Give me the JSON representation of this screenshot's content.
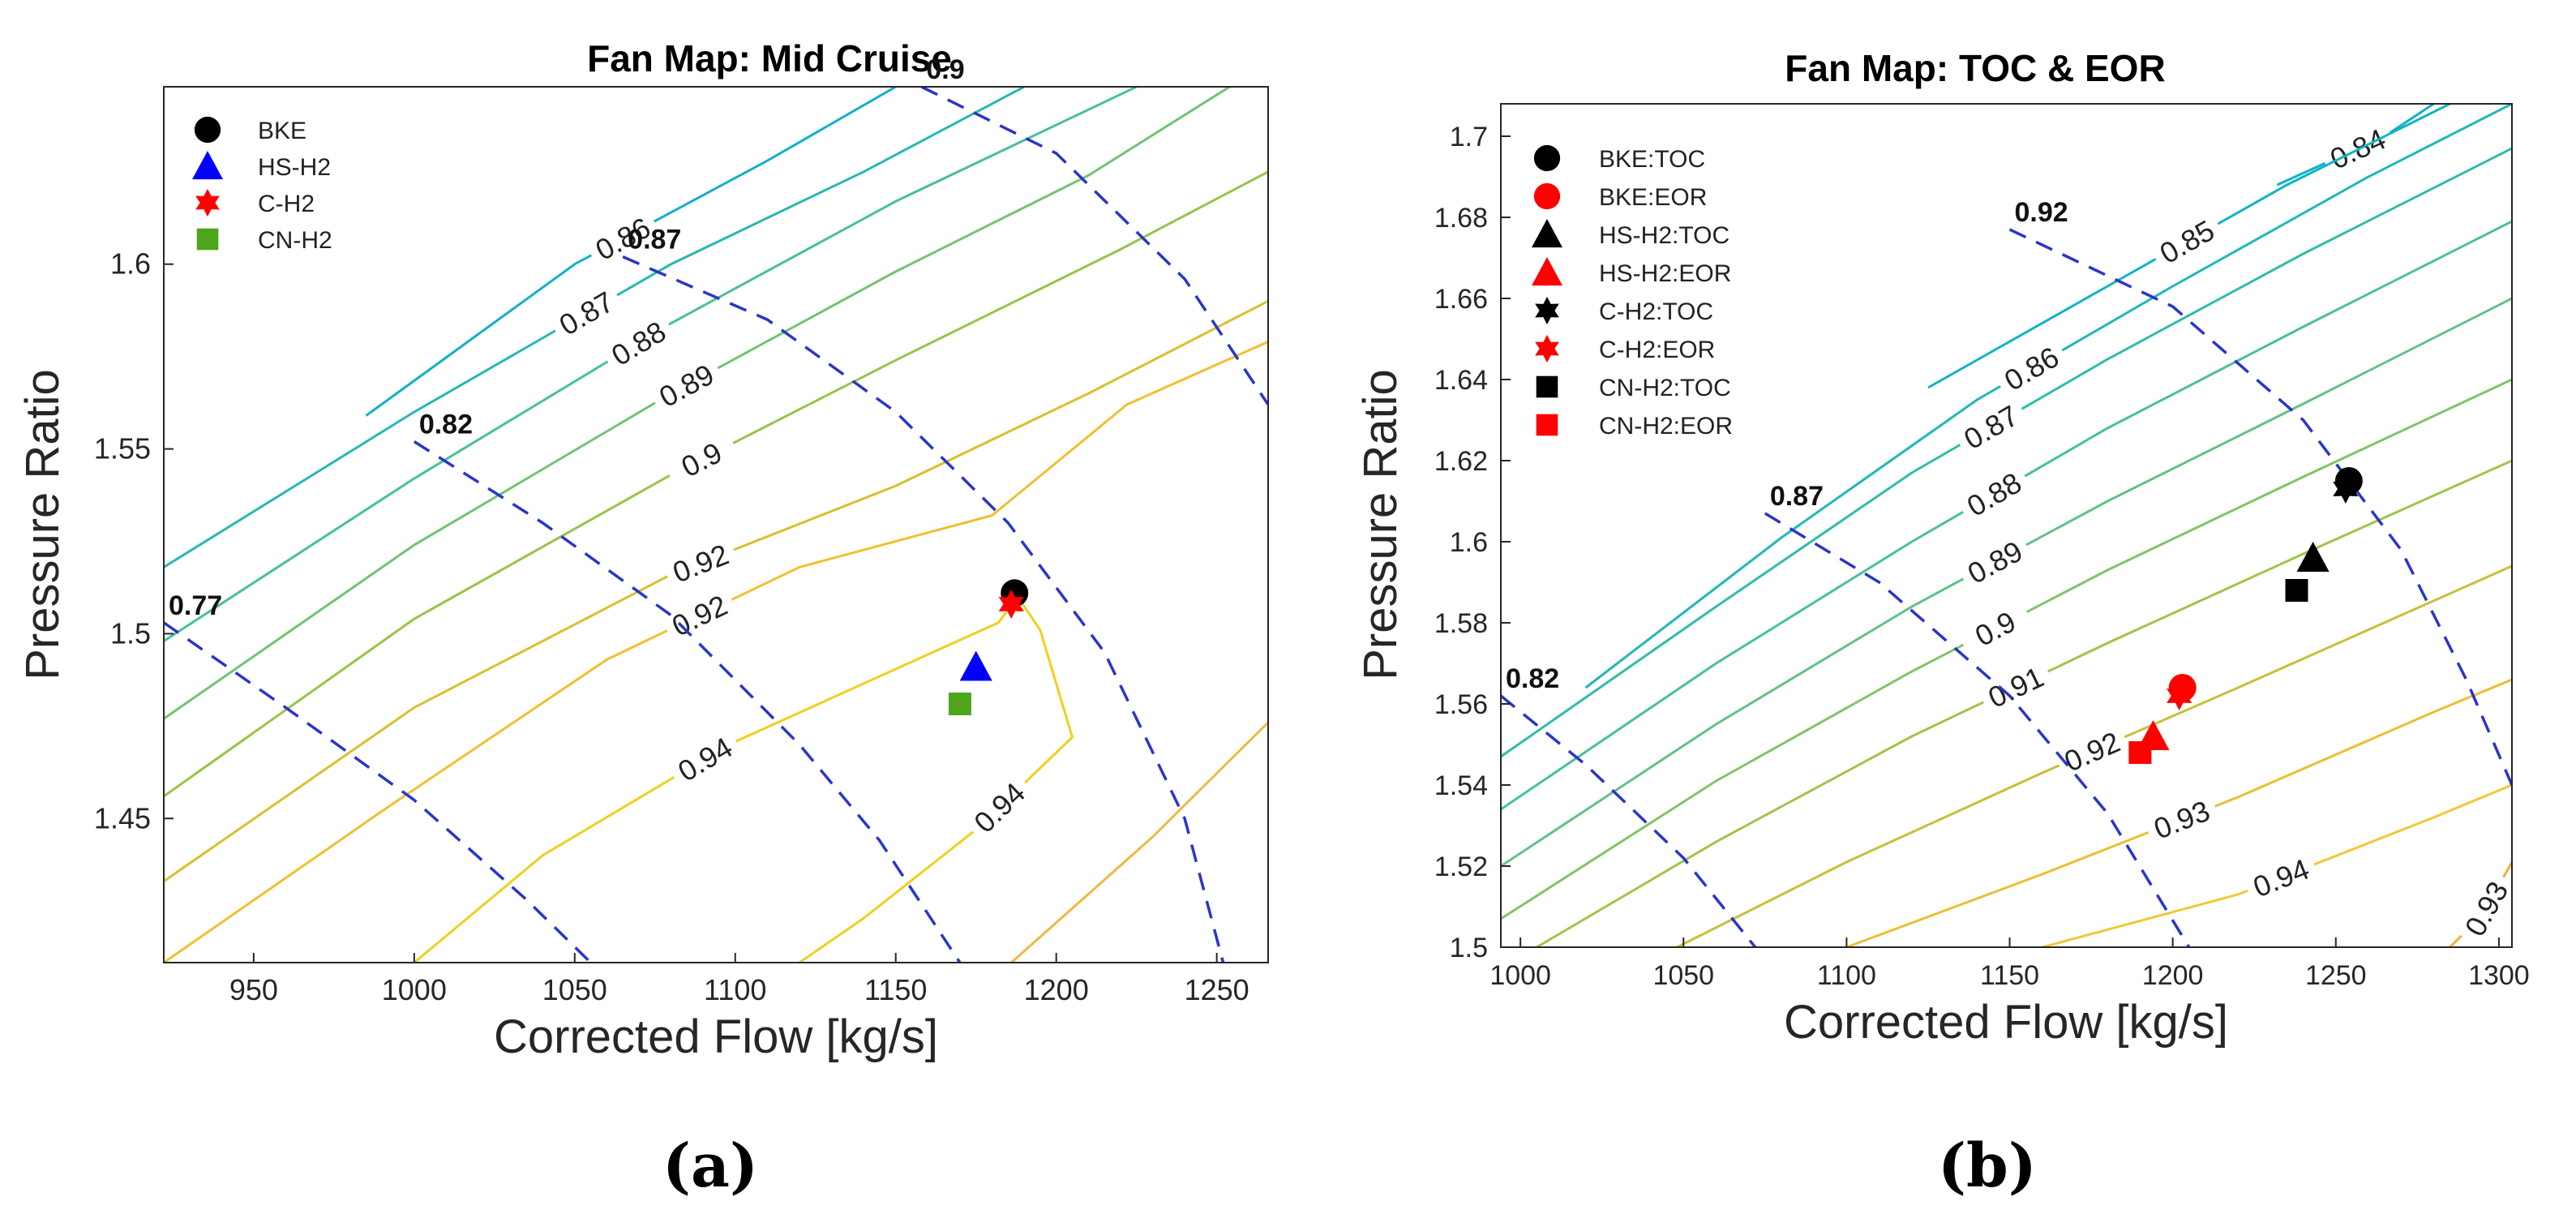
{
  "chart_data": [
    {
      "type": "scatter",
      "title": "Fan Map: Mid Cruise",
      "xlabel": "Corrected Flow [kg/s]",
      "ylabel": "Pressure Ratio",
      "xlim": [
        922,
        1266
      ],
      "ylim": [
        1.411,
        1.648
      ],
      "xticks": [
        950,
        1000,
        1050,
        1100,
        1150,
        1200,
        1250
      ],
      "xtick_labels": [
        "950",
        "1000",
        "1050",
        "1100",
        "1150",
        "1200",
        "1250"
      ],
      "yticks": [
        1.45,
        1.5,
        1.55,
        1.6
      ],
      "ytick_labels": [
        "1.45",
        "1.5",
        "1.55",
        "1.6"
      ],
      "caption": "(a)",
      "legend": [
        {
          "label": "BKE",
          "marker": "circle",
          "color": "#000000"
        },
        {
          "label": "HS-H2",
          "marker": "triangle",
          "color": "#0000ff"
        },
        {
          "label": "C-H2",
          "marker": "hexagram",
          "color": "#ff0000"
        },
        {
          "label": "CN-H2",
          "marker": "square",
          "color": "#4da51c"
        }
      ],
      "points": [
        {
          "label": "BKE",
          "x": 1187,
          "y": 1.511,
          "marker": "circle",
          "color": "#000000"
        },
        {
          "label": "C-H2",
          "x": 1186,
          "y": 1.508,
          "marker": "hexagram",
          "color": "#ff0000"
        },
        {
          "label": "HS-H2",
          "x": 1175,
          "y": 1.491,
          "marker": "triangle",
          "color": "#0000ff"
        },
        {
          "label": "CN-H2",
          "x": 1170,
          "y": 1.481,
          "marker": "square",
          "color": "#4da51c"
        }
      ],
      "speed_lines": [
        {
          "label": "0.77",
          "points": [
            [
              922,
              1.503
            ],
            [
              960,
              1.48
            ],
            [
              1000,
              1.455
            ],
            [
              1035,
              1.428
            ],
            [
              1055,
              1.411
            ]
          ]
        },
        {
          "label": "0.82",
          "points": [
            [
              1000,
              1.552
            ],
            [
              1040,
              1.53
            ],
            [
              1080,
              1.505
            ],
            [
              1120,
              1.47
            ],
            [
              1145,
              1.444
            ],
            [
              1170,
              1.411
            ]
          ]
        },
        {
          "label": "0.87",
          "points": [
            [
              1065,
              1.602
            ],
            [
              1110,
              1.585
            ],
            [
              1150,
              1.56
            ],
            [
              1185,
              1.53
            ],
            [
              1215,
              1.495
            ],
            [
              1240,
              1.45
            ],
            [
              1252,
              1.411
            ]
          ]
        },
        {
          "label": "0.9",
          "points": [
            [
              1158,
              1.648
            ],
            [
              1200,
              1.63
            ],
            [
              1240,
              1.596
            ],
            [
              1266,
              1.562
            ]
          ]
        }
      ],
      "efficiency_contours": [
        {
          "label": "0.86",
          "color": "#10b0c8",
          "points": [
            [
              985,
              1.559
            ],
            [
              1050,
              1.6
            ],
            [
              1110,
              1.628
            ],
            [
              1150,
              1.648
            ]
          ]
        },
        {
          "label": "0.87",
          "color": "#28b8b0",
          "points": [
            [
              922,
              1.518
            ],
            [
              1000,
              1.56
            ],
            [
              1080,
              1.6
            ],
            [
              1140,
              1.625
            ],
            [
              1190,
              1.648
            ]
          ]
        },
        {
          "label": "0.88",
          "color": "#48c098",
          "points": [
            [
              922,
              1.498
            ],
            [
              1000,
              1.542
            ],
            [
              1080,
              1.584
            ],
            [
              1150,
              1.617
            ],
            [
              1225,
              1.648
            ]
          ]
        },
        {
          "label": "0.89",
          "color": "#70c470",
          "points": [
            [
              922,
              1.477
            ],
            [
              1000,
              1.524
            ],
            [
              1080,
              1.565
            ],
            [
              1150,
              1.598
            ],
            [
              1210,
              1.624
            ],
            [
              1254,
              1.648
            ]
          ]
        },
        {
          "label": "0.9",
          "color": "#98c448",
          "points": [
            [
              922,
              1.456
            ],
            [
              1000,
              1.504
            ],
            [
              1080,
              1.543
            ],
            [
              1150,
              1.574
            ],
            [
              1220,
              1.604
            ],
            [
              1266,
              1.625
            ]
          ]
        },
        {
          "label": "0.92",
          "color": "#d8c030",
          "points": [
            [
              922,
              1.433
            ],
            [
              1000,
              1.48
            ],
            [
              1080,
              1.516
            ],
            [
              1150,
              1.54
            ],
            [
              1210,
              1.565
            ],
            [
              1266,
              1.59
            ]
          ]
        },
        {
          "label": "0.92",
          "color": "#f0c030",
          "points": [
            [
              922,
              1.411
            ],
            [
              990,
              1.452
            ],
            [
              1060,
              1.493
            ],
            [
              1120,
              1.518
            ],
            [
              1180,
              1.532
            ],
            [
              1222,
              1.562
            ],
            [
              1266,
              1.579
            ]
          ]
        },
        {
          "label": "0.94",
          "color": "#f0d020",
          "points": [
            [
              1188,
              1.51
            ],
            [
              1182,
              1.503
            ],
            [
              1098,
              1.47
            ],
            [
              1040,
              1.44
            ],
            [
              1000,
              1.411
            ]
          ]
        },
        {
          "label": "0.94",
          "color": "#f0d020",
          "points": [
            [
              1188,
              1.51
            ],
            [
              1195,
              1.501
            ],
            [
              1205,
              1.472
            ],
            [
              1175,
              1.447
            ],
            [
              1140,
              1.423
            ],
            [
              1120,
              1.411
            ]
          ]
        },
        {
          "label": "",
          "color": "#f0b840",
          "points": [
            [
              1186,
              1.411
            ],
            [
              1230,
              1.445
            ],
            [
              1266,
              1.476
            ]
          ]
        }
      ]
    },
    {
      "type": "scatter",
      "title": "Fan Map: TOC & EOR",
      "xlabel": "Corrected Flow [kg/s]",
      "ylabel": "Pressure Ratio",
      "xlim": [
        994,
        1304
      ],
      "ylim": [
        1.5,
        1.708
      ],
      "xticks": [
        1000,
        1050,
        1100,
        1150,
        1200,
        1250,
        1300
      ],
      "xtick_labels": [
        "1000",
        "1050",
        "1100",
        "1150",
        "1200",
        "1250",
        "1300"
      ],
      "yticks": [
        1.5,
        1.52,
        1.54,
        1.56,
        1.58,
        1.6,
        1.62,
        1.64,
        1.66,
        1.68,
        1.7
      ],
      "ytick_labels": [
        "1.5",
        "1.52",
        "1.54",
        "1.56",
        "1.58",
        "1.6",
        "1.62",
        "1.64",
        "1.66",
        "1.68",
        "1.7"
      ],
      "caption": "(b)",
      "legend": [
        {
          "label": "BKE:TOC",
          "marker": "circle",
          "color": "#000000"
        },
        {
          "label": "BKE:EOR",
          "marker": "circle",
          "color": "#ff0000"
        },
        {
          "label": "HS-H2:TOC",
          "marker": "triangle",
          "color": "#000000"
        },
        {
          "label": "HS-H2:EOR",
          "marker": "triangle",
          "color": "#ff0000"
        },
        {
          "label": "C-H2:TOC",
          "marker": "hexagram",
          "color": "#000000"
        },
        {
          "label": "C-H2:EOR",
          "marker": "hexagram",
          "color": "#ff0000"
        },
        {
          "label": "CN-H2:TOC",
          "marker": "square",
          "color": "#000000"
        },
        {
          "label": "CN-H2:EOR",
          "marker": "square",
          "color": "#ff0000"
        }
      ],
      "points": [
        {
          "label": "BKE:TOC",
          "x": 1254,
          "y": 1.615,
          "marker": "circle",
          "color": "#000000"
        },
        {
          "label": "C-H2:TOC",
          "x": 1253,
          "y": 1.613,
          "marker": "hexagram",
          "color": "#000000"
        },
        {
          "label": "HS-H2:TOC",
          "x": 1243,
          "y": 1.596,
          "marker": "triangle",
          "color": "#000000"
        },
        {
          "label": "CN-H2:TOC",
          "x": 1238,
          "y": 1.588,
          "marker": "square",
          "color": "#000000"
        },
        {
          "label": "BKE:EOR",
          "x": 1203,
          "y": 1.564,
          "marker": "circle",
          "color": "#ff0000"
        },
        {
          "label": "C-H2:EOR",
          "x": 1202,
          "y": 1.562,
          "marker": "hexagram",
          "color": "#ff0000"
        },
        {
          "label": "HS-H2:EOR",
          "x": 1194,
          "y": 1.552,
          "marker": "triangle",
          "color": "#ff0000"
        },
        {
          "label": "CN-H2:EOR",
          "x": 1190,
          "y": 1.548,
          "marker": "square",
          "color": "#ff0000"
        }
      ],
      "speed_lines": [
        {
          "label": "0.82",
          "points": [
            [
              994,
              1.562
            ],
            [
              1020,
              1.545
            ],
            [
              1050,
              1.522
            ],
            [
              1072,
              1.5
            ]
          ]
        },
        {
          "label": "0.87",
          "points": [
            [
              1075,
              1.607
            ],
            [
              1110,
              1.59
            ],
            [
              1150,
              1.562
            ],
            [
              1180,
              1.533
            ],
            [
              1205,
              1.5
            ]
          ]
        },
        {
          "label": "0.92",
          "points": [
            [
              1150,
              1.677
            ],
            [
              1200,
              1.658
            ],
            [
              1240,
              1.63
            ],
            [
              1270,
              1.598
            ],
            [
              1290,
              1.566
            ],
            [
              1304,
              1.54
            ]
          ]
        }
      ],
      "efficiency_contours": [
        {
          "label": "0.84",
          "color": "#10b0c8",
          "points": [
            [
              1232,
              1.688
            ],
            [
              1265,
              1.7
            ],
            [
              1280,
              1.708
            ]
          ]
        },
        {
          "label": "0.85",
          "color": "#10b4c4",
          "points": [
            [
              1125,
              1.638
            ],
            [
              1180,
              1.663
            ],
            [
              1235,
              1.688
            ],
            [
              1285,
              1.708
            ]
          ]
        },
        {
          "label": "0.86",
          "color": "#20b8b8",
          "points": [
            [
              1020,
              1.564
            ],
            [
              1080,
              1.601
            ],
            [
              1140,
              1.635
            ],
            [
              1200,
              1.663
            ],
            [
              1260,
              1.69
            ],
            [
              1304,
              1.708
            ]
          ]
        },
        {
          "label": "0.87",
          "color": "#30bca8",
          "points": [
            [
              994,
              1.547
            ],
            [
              1060,
              1.584
            ],
            [
              1120,
              1.617
            ],
            [
              1180,
              1.645
            ],
            [
              1240,
              1.671
            ],
            [
              1304,
              1.697
            ]
          ]
        },
        {
          "label": "0.88",
          "color": "#48c098",
          "points": [
            [
              994,
              1.534
            ],
            [
              1060,
              1.57
            ],
            [
              1120,
              1.6
            ],
            [
              1180,
              1.628
            ],
            [
              1240,
              1.653
            ],
            [
              1304,
              1.679
            ]
          ]
        },
        {
          "label": "0.89",
          "color": "#60c288",
          "points": [
            [
              994,
              1.52
            ],
            [
              1060,
              1.555
            ],
            [
              1120,
              1.584
            ],
            [
              1180,
              1.61
            ],
            [
              1240,
              1.634
            ],
            [
              1304,
              1.66
            ]
          ]
        },
        {
          "label": "0.9",
          "color": "#80c468",
          "points": [
            [
              994,
              1.507
            ],
            [
              1060,
              1.541
            ],
            [
              1120,
              1.568
            ],
            [
              1180,
              1.593
            ],
            [
              1240,
              1.616
            ],
            [
              1304,
              1.64
            ]
          ]
        },
        {
          "label": "0.91",
          "color": "#a0c448",
          "points": [
            [
              1005,
              1.5
            ],
            [
              1060,
              1.526
            ],
            [
              1120,
              1.552
            ],
            [
              1180,
              1.575
            ],
            [
              1240,
              1.597
            ],
            [
              1304,
              1.62
            ]
          ]
        },
        {
          "label": "0.92",
          "color": "#c8c038",
          "points": [
            [
              1048,
              1.5
            ],
            [
              1100,
              1.521
            ],
            [
              1160,
              1.543
            ],
            [
              1220,
              1.564
            ],
            [
              1304,
              1.594
            ]
          ]
        },
        {
          "label": "0.93",
          "color": "#e8c030",
          "points": [
            [
              1100,
              1.5
            ],
            [
              1160,
              1.518
            ],
            [
              1220,
              1.537
            ],
            [
              1280,
              1.558
            ],
            [
              1304,
              1.566
            ]
          ]
        },
        {
          "label": "0.94",
          "color": "#f0c838",
          "points": [
            [
              1160,
              1.5
            ],
            [
              1220,
              1.513
            ],
            [
              1280,
              1.532
            ],
            [
              1304,
              1.54
            ]
          ]
        },
        {
          "label": "0.93",
          "color": "#f0b040",
          "points": [
            [
              1285,
              1.5
            ],
            [
              1295,
              1.508
            ],
            [
              1304,
              1.521
            ]
          ]
        }
      ]
    }
  ]
}
